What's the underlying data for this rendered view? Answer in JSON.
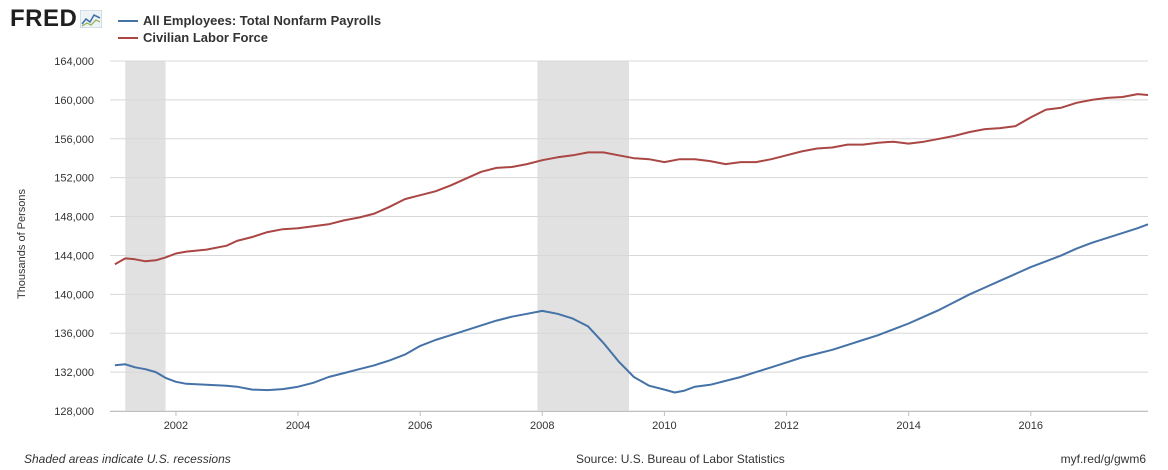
{
  "logo": {
    "text": "FRED"
  },
  "legend": [
    {
      "label": "All Employees: Total Nonfarm Payrolls",
      "color": "#4572a7"
    },
    {
      "label": "Civilian Labor Force",
      "color": "#aa4643"
    }
  ],
  "footer": {
    "note": "Shaded areas indicate U.S. recessions",
    "source": "Source: U.S. Bureau of Labor Statistics",
    "link": "myf.red/g/gwm6"
  },
  "chart_data": {
    "type": "line",
    "title": "",
    "xlabel": "",
    "ylabel": "Thousands of Persons",
    "xlim": [
      2000.92,
      2017.92
    ],
    "ylim": [
      128000,
      164000
    ],
    "y_ticks": [
      128000,
      132000,
      136000,
      140000,
      144000,
      148000,
      152000,
      156000,
      160000,
      164000
    ],
    "y_tick_labels": [
      "128,000",
      "132,000",
      "136,000",
      "140,000",
      "144,000",
      "148,000",
      "152,000",
      "156,000",
      "160,000",
      "164,000"
    ],
    "x_ticks": [
      2002,
      2004,
      2006,
      2008,
      2010,
      2012,
      2014,
      2016
    ],
    "x_tick_labels": [
      "2002",
      "2004",
      "2006",
      "2008",
      "2010",
      "2012",
      "2014",
      "2016"
    ],
    "grid": "horizontal",
    "legend_position": "top-left",
    "recessions": [
      [
        2001.17,
        2001.83
      ],
      [
        2007.92,
        2009.42
      ]
    ],
    "series": [
      {
        "name": "All Employees: Total Nonfarm Payrolls",
        "color": "#4572a7",
        "points": [
          [
            2001.0,
            132700
          ],
          [
            2001.17,
            132800
          ],
          [
            2001.33,
            132500
          ],
          [
            2001.5,
            132300
          ],
          [
            2001.67,
            132000
          ],
          [
            2001.83,
            131400
          ],
          [
            2002.0,
            131000
          ],
          [
            2002.17,
            130800
          ],
          [
            2002.5,
            130700
          ],
          [
            2002.83,
            130600
          ],
          [
            2003.0,
            130500
          ],
          [
            2003.25,
            130200
          ],
          [
            2003.5,
            130150
          ],
          [
            2003.75,
            130250
          ],
          [
            2004.0,
            130500
          ],
          [
            2004.25,
            130900
          ],
          [
            2004.5,
            131500
          ],
          [
            2004.75,
            131900
          ],
          [
            2005.0,
            132300
          ],
          [
            2005.25,
            132700
          ],
          [
            2005.5,
            133200
          ],
          [
            2005.75,
            133800
          ],
          [
            2006.0,
            134700
          ],
          [
            2006.25,
            135300
          ],
          [
            2006.5,
            135800
          ],
          [
            2006.75,
            136300
          ],
          [
            2007.0,
            136800
          ],
          [
            2007.25,
            137300
          ],
          [
            2007.5,
            137700
          ],
          [
            2007.75,
            138000
          ],
          [
            2008.0,
            138300
          ],
          [
            2008.25,
            138000
          ],
          [
            2008.5,
            137500
          ],
          [
            2008.75,
            136700
          ],
          [
            2009.0,
            135000
          ],
          [
            2009.25,
            133100
          ],
          [
            2009.5,
            131500
          ],
          [
            2009.75,
            130600
          ],
          [
            2010.0,
            130200
          ],
          [
            2010.17,
            129900
          ],
          [
            2010.33,
            130100
          ],
          [
            2010.5,
            130500
          ],
          [
            2010.75,
            130700
          ],
          [
            2011.0,
            131100
          ],
          [
            2011.25,
            131500
          ],
          [
            2011.5,
            132000
          ],
          [
            2011.75,
            132500
          ],
          [
            2012.0,
            133000
          ],
          [
            2012.25,
            133500
          ],
          [
            2012.5,
            133900
          ],
          [
            2012.75,
            134300
          ],
          [
            2013.0,
            134800
          ],
          [
            2013.25,
            135300
          ],
          [
            2013.5,
            135800
          ],
          [
            2013.75,
            136400
          ],
          [
            2014.0,
            137000
          ],
          [
            2014.25,
            137700
          ],
          [
            2014.5,
            138400
          ],
          [
            2014.75,
            139200
          ],
          [
            2015.0,
            140000
          ],
          [
            2015.25,
            140700
          ],
          [
            2015.5,
            141400
          ],
          [
            2015.75,
            142100
          ],
          [
            2016.0,
            142800
          ],
          [
            2016.25,
            143400
          ],
          [
            2016.5,
            144000
          ],
          [
            2016.75,
            144700
          ],
          [
            2017.0,
            145300
          ],
          [
            2017.25,
            145800
          ],
          [
            2017.5,
            146300
          ],
          [
            2017.75,
            146800
          ],
          [
            2017.92,
            147200
          ]
        ]
      },
      {
        "name": "Civilian Labor Force",
        "color": "#aa4643",
        "points": [
          [
            2001.0,
            143100
          ],
          [
            2001.17,
            143700
          ],
          [
            2001.33,
            143600
          ],
          [
            2001.5,
            143400
          ],
          [
            2001.67,
            143500
          ],
          [
            2001.83,
            143800
          ],
          [
            2002.0,
            144200
          ],
          [
            2002.17,
            144400
          ],
          [
            2002.5,
            144600
          ],
          [
            2002.83,
            145000
          ],
          [
            2003.0,
            145500
          ],
          [
            2003.25,
            145900
          ],
          [
            2003.5,
            146400
          ],
          [
            2003.75,
            146700
          ],
          [
            2004.0,
            146800
          ],
          [
            2004.25,
            147000
          ],
          [
            2004.5,
            147200
          ],
          [
            2004.75,
            147600
          ],
          [
            2005.0,
            147900
          ],
          [
            2005.25,
            148300
          ],
          [
            2005.5,
            149000
          ],
          [
            2005.75,
            149800
          ],
          [
            2006.0,
            150200
          ],
          [
            2006.25,
            150600
          ],
          [
            2006.5,
            151200
          ],
          [
            2006.75,
            151900
          ],
          [
            2007.0,
            152600
          ],
          [
            2007.25,
            153000
          ],
          [
            2007.5,
            153100
          ],
          [
            2007.75,
            153400
          ],
          [
            2008.0,
            153800
          ],
          [
            2008.25,
            154100
          ],
          [
            2008.5,
            154300
          ],
          [
            2008.75,
            154600
          ],
          [
            2009.0,
            154600
          ],
          [
            2009.25,
            154300
          ],
          [
            2009.5,
            154000
          ],
          [
            2009.75,
            153900
          ],
          [
            2010.0,
            153600
          ],
          [
            2010.25,
            153900
          ],
          [
            2010.5,
            153900
          ],
          [
            2010.75,
            153700
          ],
          [
            2011.0,
            153400
          ],
          [
            2011.25,
            153600
          ],
          [
            2011.5,
            153600
          ],
          [
            2011.75,
            153900
          ],
          [
            2012.0,
            154300
          ],
          [
            2012.25,
            154700
          ],
          [
            2012.5,
            155000
          ],
          [
            2012.75,
            155100
          ],
          [
            2013.0,
            155400
          ],
          [
            2013.25,
            155400
          ],
          [
            2013.5,
            155600
          ],
          [
            2013.75,
            155700
          ],
          [
            2014.0,
            155500
          ],
          [
            2014.25,
            155700
          ],
          [
            2014.5,
            156000
          ],
          [
            2014.75,
            156300
          ],
          [
            2015.0,
            156700
          ],
          [
            2015.25,
            157000
          ],
          [
            2015.5,
            157100
          ],
          [
            2015.75,
            157300
          ],
          [
            2016.0,
            158200
          ],
          [
            2016.25,
            159000
          ],
          [
            2016.5,
            159200
          ],
          [
            2016.75,
            159700
          ],
          [
            2017.0,
            160000
          ],
          [
            2017.25,
            160200
          ],
          [
            2017.5,
            160300
          ],
          [
            2017.75,
            160600
          ],
          [
            2017.92,
            160500
          ]
        ]
      }
    ]
  }
}
